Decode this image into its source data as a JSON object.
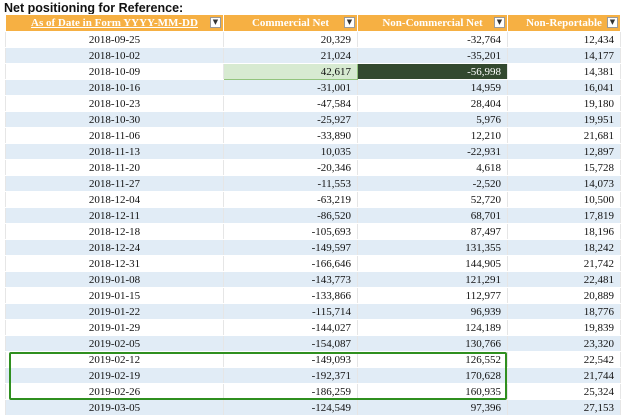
{
  "title": "Net positioning for Reference:",
  "columns": [
    {
      "label": "As of Date in Form YYYY-MM-DD",
      "filter_icon": "filter-dropdown-icon"
    },
    {
      "label": "Commercial Net",
      "filter_icon": "dropdown-icon"
    },
    {
      "label": "Non-Commercial Net",
      "filter_icon": "dropdown-icon"
    },
    {
      "label": "Non-Reportable",
      "filter_icon": "dropdown-icon"
    }
  ],
  "rows": [
    [
      "2018-09-25",
      "20,329",
      "-32,764",
      "12,434"
    ],
    [
      "2018-10-02",
      "21,024",
      "-35,201",
      "14,177"
    ],
    [
      "2018-10-09",
      "42,617",
      "-56,998",
      "14,381"
    ],
    [
      "2018-10-16",
      "-31,001",
      "14,959",
      "16,041"
    ],
    [
      "2018-10-23",
      "-47,584",
      "28,404",
      "19,180"
    ],
    [
      "2018-10-30",
      "-25,927",
      "5,976",
      "19,951"
    ],
    [
      "2018-11-06",
      "-33,890",
      "12,210",
      "21,681"
    ],
    [
      "2018-11-13",
      "10,035",
      "-22,931",
      "12,897"
    ],
    [
      "2018-11-20",
      "-20,346",
      "4,618",
      "15,728"
    ],
    [
      "2018-11-27",
      "-11,553",
      "-2,520",
      "14,073"
    ],
    [
      "2018-12-04",
      "-63,219",
      "52,720",
      "10,500"
    ],
    [
      "2018-12-11",
      "-86,520",
      "68,701",
      "17,819"
    ],
    [
      "2018-12-18",
      "-105,693",
      "87,497",
      "18,196"
    ],
    [
      "2018-12-24",
      "-149,597",
      "131,355",
      "18,242"
    ],
    [
      "2018-12-31",
      "-166,646",
      "144,905",
      "21,742"
    ],
    [
      "2019-01-08",
      "-143,773",
      "121,291",
      "22,481"
    ],
    [
      "2019-01-15",
      "-133,866",
      "112,977",
      "20,889"
    ],
    [
      "2019-01-22",
      "-115,714",
      "96,939",
      "18,776"
    ],
    [
      "2019-01-29",
      "-144,027",
      "124,189",
      "19,839"
    ],
    [
      "2019-02-05",
      "-154,087",
      "130,766",
      "23,320"
    ],
    [
      "2019-02-12",
      "-149,093",
      "126,552",
      "22,542"
    ],
    [
      "2019-02-19",
      "-192,371",
      "170,628",
      "21,744"
    ],
    [
      "2019-02-26",
      "-186,259",
      "160,935",
      "25,324"
    ],
    [
      "2019-03-05",
      "-124,549",
      "97,396",
      "27,153"
    ]
  ],
  "highlights": {
    "green_cell": {
      "row": 2,
      "col": 1,
      "color": "#d7ead1"
    },
    "dark_cell": {
      "row": 2,
      "col": 2,
      "color": "#33492f"
    },
    "box_rows": [
      21,
      22,
      23
    ],
    "box_color": "#2f8f1f"
  },
  "colors": {
    "header": "#f6b043",
    "band": "#e1ecf6"
  }
}
